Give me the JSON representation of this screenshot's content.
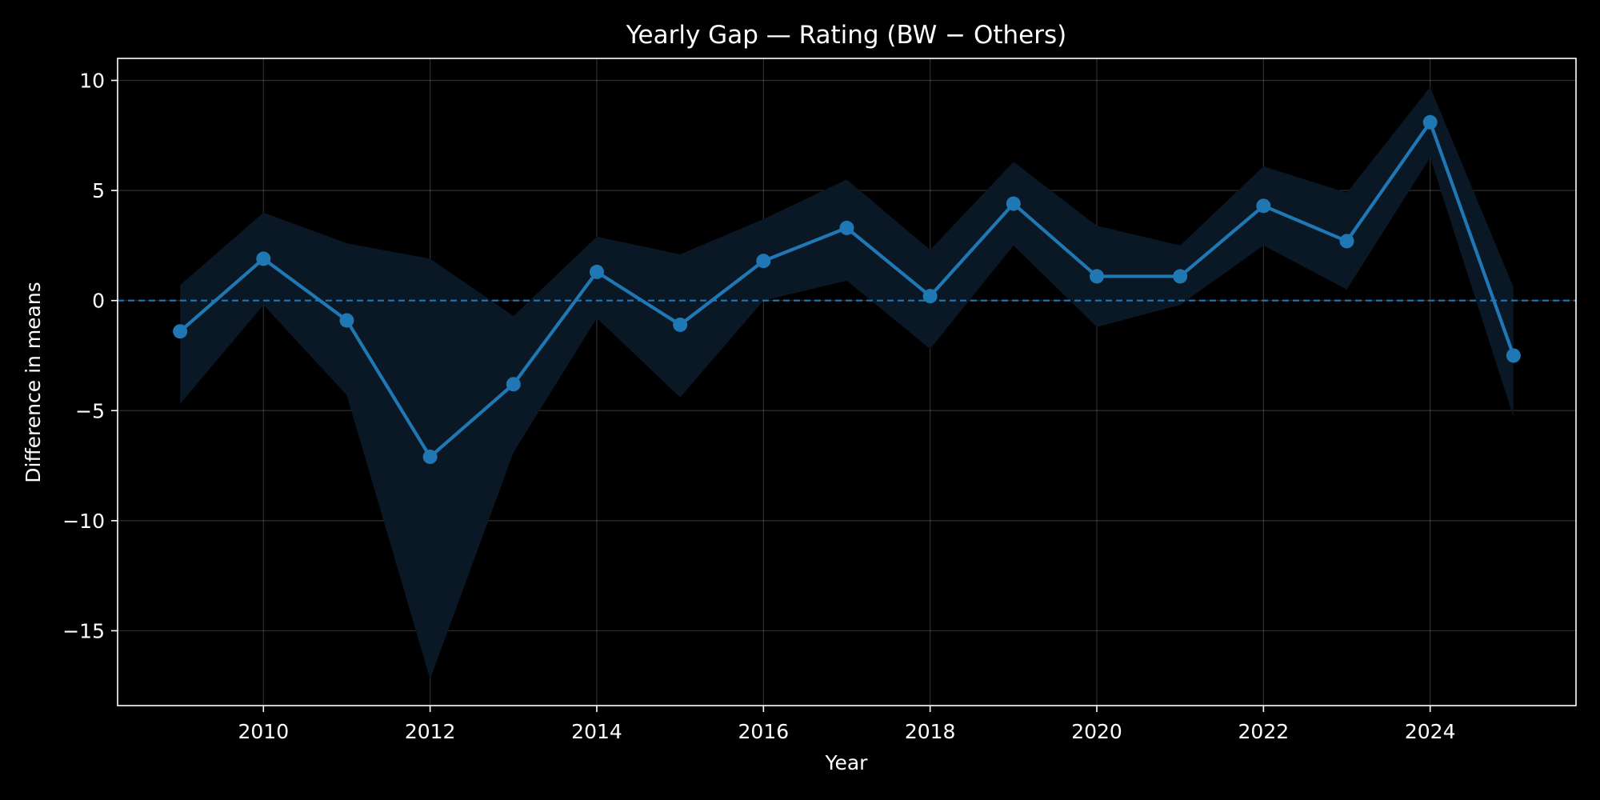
{
  "chart_data": {
    "type": "line",
    "title": "Yearly Gap — Rating (BW − Others)",
    "xlabel": "Year",
    "ylabel": "Difference in means",
    "xlim": [
      2008.25,
      2025.75
    ],
    "ylim": [
      -18.4,
      11
    ],
    "xticks": [
      2010,
      2012,
      2014,
      2016,
      2018,
      2020,
      2022,
      2024
    ],
    "xtick_labels": [
      "2010",
      "2012",
      "2014",
      "2016",
      "2018",
      "2020",
      "2022",
      "2024"
    ],
    "yticks": [
      10,
      5,
      0,
      -5,
      -10,
      -15
    ],
    "ytick_labels": [
      "10",
      "5",
      "0",
      "−5",
      "−10",
      "−15"
    ],
    "grid": true,
    "reference_line": {
      "y": 0,
      "style": "dashed"
    },
    "x": [
      2009,
      2010,
      2011,
      2012,
      2013,
      2014,
      2015,
      2016,
      2017,
      2018,
      2019,
      2020,
      2021,
      2022,
      2023,
      2024,
      2025
    ],
    "series": [
      {
        "values": [
          -1.4,
          1.9,
          -0.9,
          -7.1,
          -3.8,
          1.3,
          -1.1,
          1.8,
          3.3,
          0.2,
          4.4,
          1.1,
          1.1,
          4.3,
          2.7,
          8.1,
          -2.5
        ],
        "ci_upper": [
          0.7,
          4.0,
          2.6,
          1.9,
          -0.7,
          2.9,
          2.1,
          3.7,
          5.5,
          2.3,
          6.3,
          3.4,
          2.5,
          6.1,
          4.9,
          9.7,
          0.6
        ],
        "ci_lower": [
          -4.7,
          -0.2,
          -4.3,
          -17.2,
          -6.9,
          -0.8,
          -4.4,
          0.0,
          0.9,
          -2.2,
          2.5,
          -1.2,
          -0.2,
          2.5,
          0.5,
          6.5,
          -5.3
        ]
      }
    ],
    "colors": {
      "background": "#000000",
      "line": "#1f77b4",
      "band": "#0a1724",
      "text": "#ffffff"
    }
  }
}
